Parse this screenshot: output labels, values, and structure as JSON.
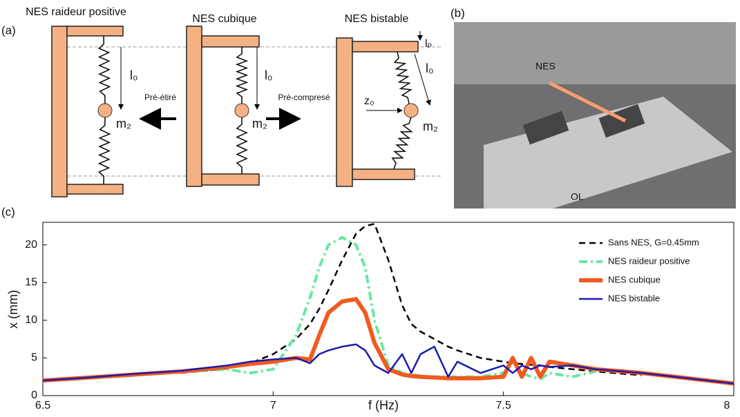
{
  "panel_labels": [
    "(a)",
    "(b)",
    "(c)"
  ],
  "diagram": {
    "panels": [
      {
        "title": "NES raideur positive",
        "length": "l₀",
        "mass": "m₂"
      },
      {
        "title": "NES cubique",
        "length": "l₀",
        "mass": "m₂"
      },
      {
        "title": "NES bistable",
        "length": "l₀",
        "mass": "m₂",
        "offset": "z₀",
        "plate": "lₚ"
      }
    ],
    "arrows": [
      "Pré-étiré",
      "Pré-compresé"
    ]
  },
  "photo": {
    "labels": [
      "NES",
      "OL"
    ]
  },
  "chart_data": {
    "type": "line",
    "xlabel": "f  (Hz)",
    "ylabel": "x (mm)",
    "xlim": [
      6.5,
      8
    ],
    "ylim": [
      0,
      23
    ],
    "xticks": [
      6.5,
      7,
      7.5,
      8
    ],
    "yticks": [
      0,
      5,
      10,
      15,
      20
    ],
    "legend": "upper right",
    "x": [
      6.5,
      6.6,
      6.7,
      6.8,
      6.9,
      6.95,
      7,
      7.05,
      7.08,
      7.1,
      7.12,
      7.15,
      7.18,
      7.2,
      7.22,
      7.25,
      7.28,
      7.3,
      7.32,
      7.35,
      7.38,
      7.4,
      7.45,
      7.5,
      7.52,
      7.54,
      7.56,
      7.58,
      7.6,
      7.65,
      7.7,
      7.8,
      7.9,
      8
    ],
    "series": [
      {
        "name": "Sans NES, G=0.45mm",
        "color": "#000000",
        "style": "dashed",
        "values": [
          null,
          null,
          null,
          3.0,
          3.6,
          4.3,
          5.5,
          7.5,
          9.5,
          11.5,
          14,
          18,
          21.5,
          22.5,
          22.8,
          18,
          12,
          9.5,
          8.5,
          7.5,
          6.5,
          6,
          5,
          4.5,
          4.3,
          4.2,
          4.1,
          4,
          3.8,
          3.5,
          3.2,
          2.7,
          null,
          null
        ]
      },
      {
        "name": "NES raideur positive",
        "color": "#66e8a0",
        "style": "dashdot",
        "values": [
          2,
          2.3,
          2.7,
          3.1,
          3.5,
          3,
          3.5,
          8,
          13,
          17,
          20,
          21,
          20,
          17,
          10,
          4,
          3,
          2.8,
          2.6,
          2.5,
          2.5,
          2.5,
          2.5,
          3,
          4.5,
          3,
          2.5,
          2.2,
          3,
          2.5,
          3.2,
          null,
          null,
          null
        ]
      },
      {
        "name": "NES cubique",
        "color": "#f25a1e",
        "style": "solid",
        "values": [
          2,
          2.4,
          2.8,
          3.2,
          3.8,
          4.2,
          4.5,
          5,
          4.8,
          8,
          11,
          12.5,
          12.8,
          11,
          7,
          3.5,
          2.8,
          2.6,
          2.5,
          2.4,
          2.3,
          2.3,
          2.3,
          2.5,
          5,
          2.5,
          5,
          2.5,
          4.5,
          4,
          3.5,
          3,
          2.3,
          1.6
        ]
      },
      {
        "name": "NES bistable",
        "color": "#1a1aaf",
        "style": "solid",
        "values": [
          2,
          2.4,
          2.9,
          3.3,
          4,
          4.5,
          4.8,
          5,
          4.3,
          5.5,
          6,
          6.5,
          6.8,
          6,
          4,
          3,
          5.5,
          3,
          5.5,
          6.5,
          2.5,
          4.5,
          3,
          4,
          3,
          4,
          3.5,
          4,
          3.8,
          4,
          3.5,
          3,
          2.3,
          1.6
        ]
      }
    ]
  }
}
